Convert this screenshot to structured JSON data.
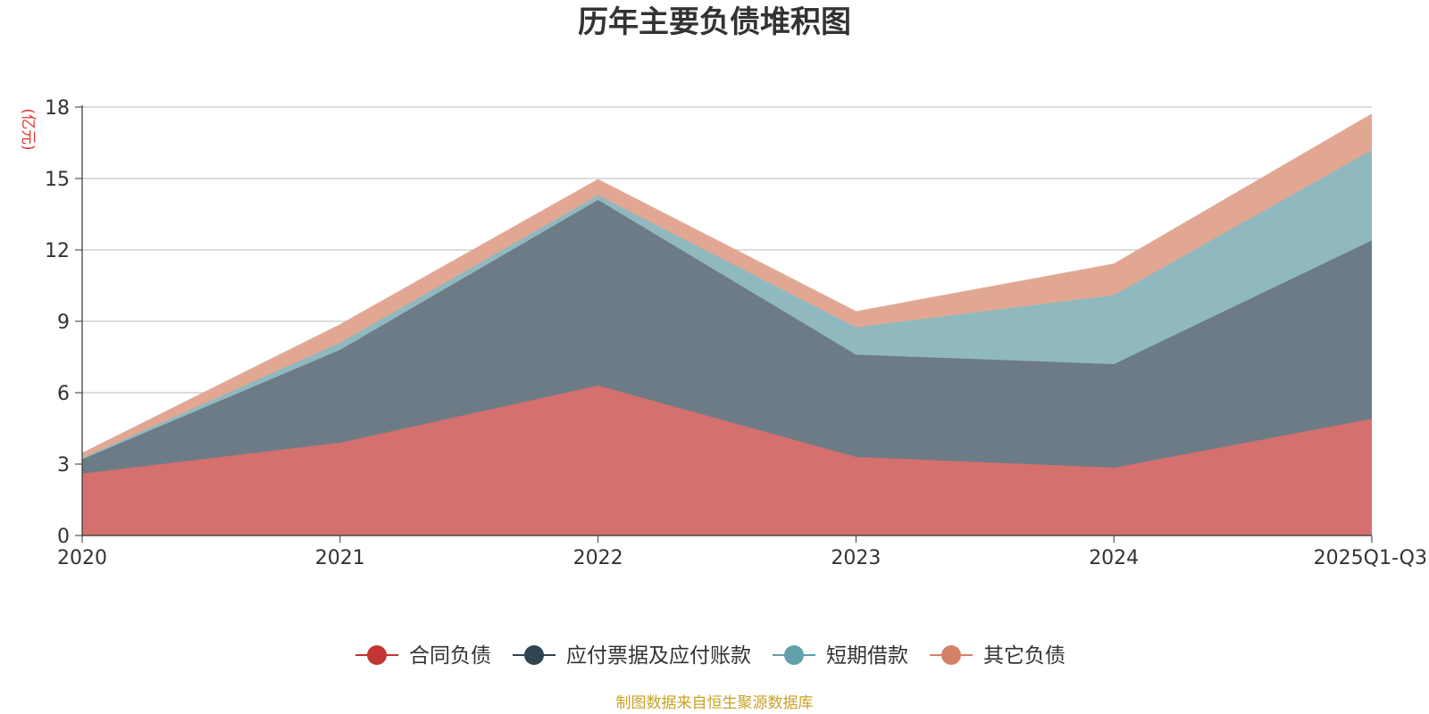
{
  "chart_data": {
    "type": "area",
    "stacked": true,
    "title": "历年主要负债堆积图",
    "unit_label": "(亿元)",
    "xlabel": "",
    "ylabel": "",
    "categories": [
      "2020",
      "2021",
      "2022",
      "2023",
      "2024",
      "2025Q1-Q3"
    ],
    "y_ticks": [
      "0",
      "3",
      "6",
      "9",
      "12",
      "15",
      "18"
    ],
    "ylim": [
      0,
      18
    ],
    "grid": true,
    "legend_position": "bottom-center",
    "series": [
      {
        "name": "合同负债",
        "color": "#c23531",
        "fill": "#d4706d",
        "values": [
          2.6,
          3.9,
          6.3,
          3.3,
          2.85,
          4.9
        ]
      },
      {
        "name": "应付票据及应付账款",
        "color": "#2f4554",
        "fill": "#6d7b86",
        "values": [
          0.6,
          3.9,
          7.8,
          4.3,
          4.35,
          7.5
        ]
      },
      {
        "name": "短期借款",
        "color": "#61a0a8",
        "fill": "#90b9bf",
        "values": [
          0.05,
          0.3,
          0.2,
          1.15,
          2.9,
          3.8
        ]
      },
      {
        "name": "其它负债",
        "color": "#d48265",
        "fill": "#e1a792",
        "values": [
          0.2,
          0.75,
          0.65,
          0.65,
          1.3,
          1.5
        ]
      }
    ],
    "source": "制图数据来自恒生聚源数据库"
  }
}
